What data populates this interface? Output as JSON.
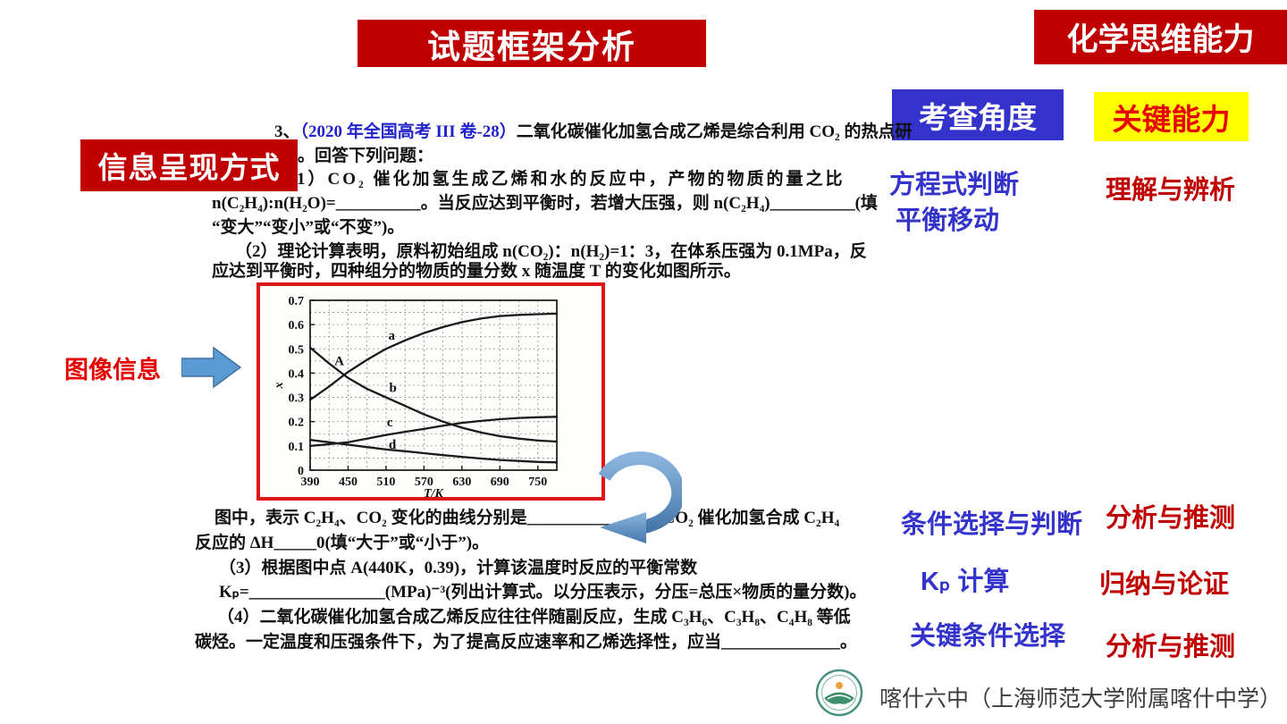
{
  "banners": {
    "main": "试题框架分析",
    "right": "化学思维能力"
  },
  "headers": {
    "angle_header": "考查角度",
    "ability_header": "关键能力"
  },
  "left_labels": {
    "info_box": "信息呈现方式",
    "image_info": "图像信息"
  },
  "question": {
    "l1_num": "3、",
    "l1_cite": "（2020 年全国高考 III 卷-28）",
    "l1_rest": "二氧化碳催化加氢合成乙烯是综合利用 CO₂ 的热点研",
    "l2": "。回答下列问题：",
    "l3": "（1）CO₂ 催化加氢生成乙烯和水的反应中，产物的物质的量之比",
    "l4": "n(C₂H₄):n(H₂O)=__________。当反应达到平衡时，若增大压强，则 n(C₂H₄)__________(填",
    "l5": "“变大”“变小”或“不变”)。",
    "l6": "（2）理论计算表明，原料初始组成 n(CO₂)：n(H₂)=1：3，在体系压强为 0.1MPa，反",
    "l7": "应达到平衡时，四种组分的物质的量分数 x 随温度 T 的变化如图所示。",
    "l8": "图中，表示 C₂H₄、CO₂ 变化的曲线分别是______________。CO₂ 催化加氢合成 C₂H₄",
    "l9": "反应的 ΔH_____0(填“大于”或“小于”)。",
    "l10": "（3）根据图中点 A(440K，0.39)，计算该温度时反应的平衡常数",
    "l11": "Kₚ=________________(MPa)⁻³(列出计算式。以分压表示，分压=总压×物质的量分数)。",
    "l12": "（4）二氧化碳催化加氢合成乙烯反应往往伴随副反应，生成 C₃H₆、C₃H₈、C₄H₈ 等低",
    "l13": "碳烃。一定温度和压强条件下，为了提高反应速率和乙烯选择性，应当______________。"
  },
  "analysis": {
    "rows": [
      {
        "angles": [
          "方程式判断",
          "平衡移动"
        ],
        "ability": "理解与辨析"
      },
      {
        "angles": [
          "条件选择与判断"
        ],
        "ability": "分析与推测"
      },
      {
        "angles": [
          "Kₚ 计算"
        ],
        "ability": "归纳与论证"
      },
      {
        "angles": [
          "关键条件选择"
        ],
        "ability": "分析与推测"
      }
    ]
  },
  "footer": {
    "school": "喀什六中（上海师范大学附属喀什中学）"
  },
  "colors": {
    "banner_red": "#c00000",
    "header_blue": "#3333cc",
    "header_yellow": "#ffff00",
    "cite_blue": "#2222cc",
    "arrow_blue": "#5b9bd5"
  },
  "chart_data": {
    "type": "line",
    "title": "",
    "xlabel": "T/K",
    "ylabel": "x",
    "xlim": [
      390,
      780
    ],
    "ylim": [
      0,
      0.7
    ],
    "x_ticks": [
      390,
      450,
      510,
      570,
      630,
      690,
      750
    ],
    "y_ticks": [
      0,
      0.1,
      0.2,
      0.3,
      0.4,
      0.5,
      0.6,
      0.7
    ],
    "grid": {
      "x_step": 30,
      "y_step": 0.05,
      "style": "dashed"
    },
    "x": [
      390,
      420,
      450,
      480,
      510,
      540,
      570,
      600,
      630,
      660,
      690,
      720,
      750,
      780
    ],
    "series": [
      {
        "name": "a",
        "values": [
          0.29,
          0.345,
          0.405,
          0.455,
          0.5,
          0.535,
          0.565,
          0.59,
          0.61,
          0.625,
          0.635,
          0.64,
          0.643,
          0.645
        ]
      },
      {
        "name": "b",
        "values": [
          0.505,
          0.44,
          0.38,
          0.335,
          0.3,
          0.265,
          0.23,
          0.2,
          0.175,
          0.155,
          0.14,
          0.13,
          0.122,
          0.118
        ]
      },
      {
        "name": "c",
        "values": [
          0.1,
          0.107,
          0.115,
          0.13,
          0.145,
          0.158,
          0.17,
          0.183,
          0.195,
          0.203,
          0.21,
          0.215,
          0.218,
          0.22
        ]
      },
      {
        "name": "d",
        "values": [
          0.125,
          0.115,
          0.105,
          0.095,
          0.085,
          0.078,
          0.07,
          0.062,
          0.055,
          0.048,
          0.042,
          0.038,
          0.034,
          0.032
        ]
      }
    ],
    "annotations": [
      {
        "label": "A",
        "x": 436,
        "y": 0.432
      },
      {
        "label": "a",
        "x": 519,
        "y": 0.537
      },
      {
        "label": "b",
        "x": 521,
        "y": 0.322
      },
      {
        "label": "c",
        "x": 516,
        "y": 0.18
      },
      {
        "label": "d",
        "x": 520,
        "y": 0.088
      }
    ],
    "legend_position": "none"
  }
}
